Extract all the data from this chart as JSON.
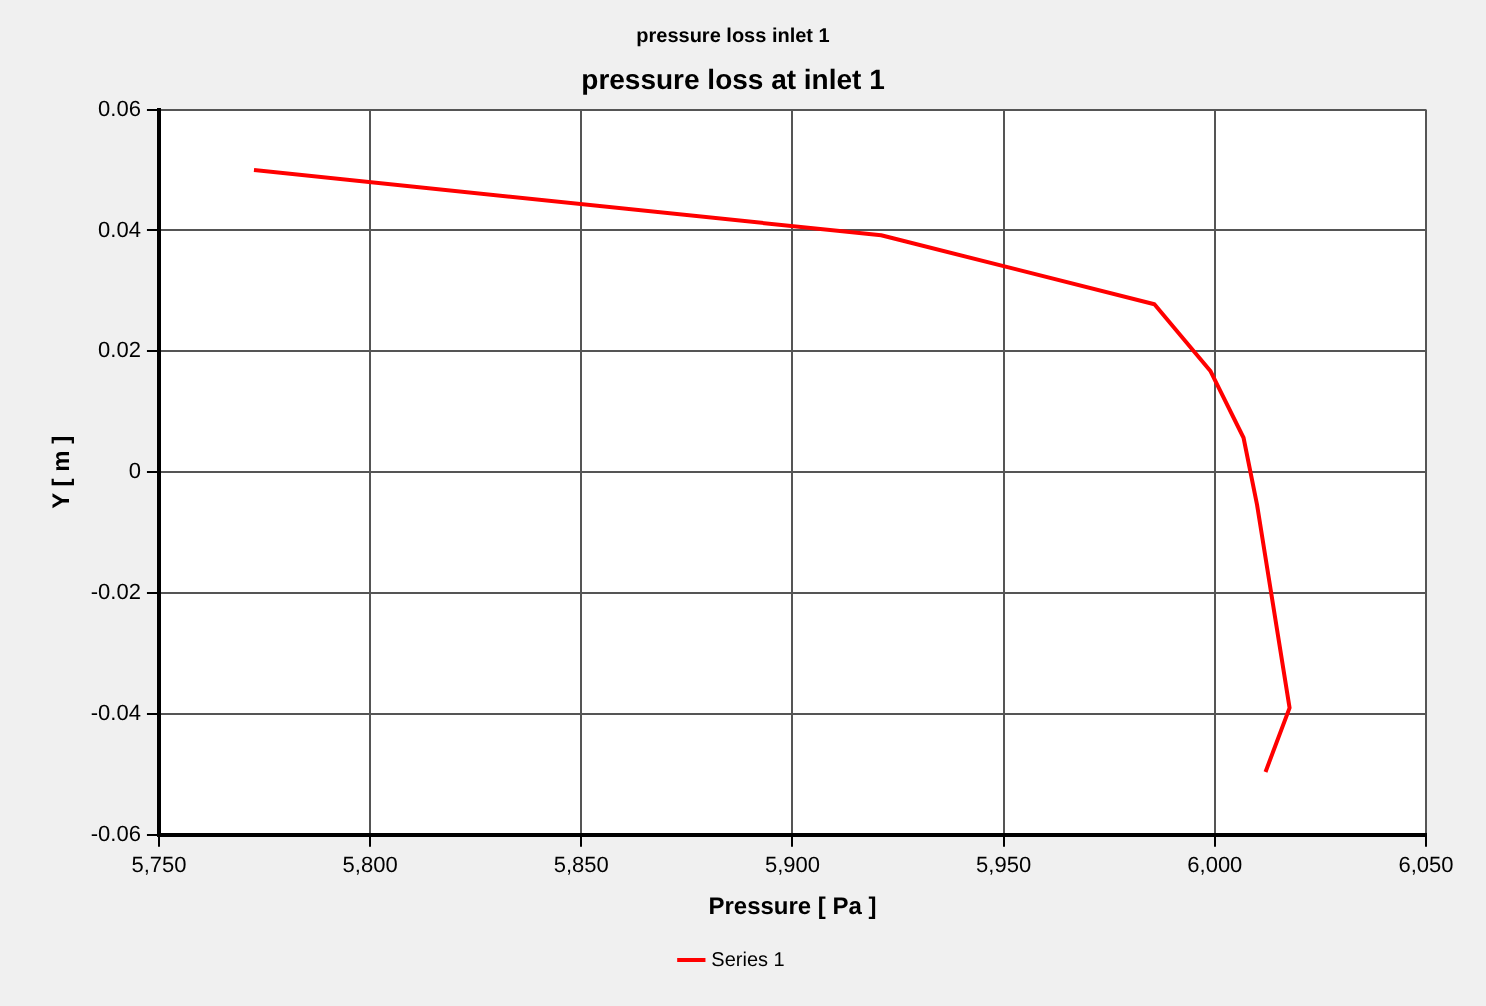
{
  "chart_data": {
    "type": "line",
    "title": "pressure loss inlet 1",
    "subtitle": "pressure loss at inlet 1",
    "xlabel": "Pressure [ Pa ]",
    "ylabel": "Y [ m ]",
    "series": [
      {
        "name": "Series 1",
        "color": "#ff0000",
        "x": [
          5772.5,
          5921,
          5985.7,
          5999,
          6006.8,
          6010,
          6017.7,
          6012
        ],
        "values": [
          0.05,
          0.0392,
          0.0278,
          0.0167,
          0.0057,
          -0.0054,
          -0.039,
          -0.0496
        ]
      }
    ],
    "xlim": [
      5750,
      6050
    ],
    "xticks": [
      {
        "value": 5750,
        "label": "5,750"
      },
      {
        "value": 5800,
        "label": "5,800"
      },
      {
        "value": 5850,
        "label": "5,850"
      },
      {
        "value": 5900,
        "label": "5,900"
      },
      {
        "value": 5950,
        "label": "5,950"
      },
      {
        "value": 6000,
        "label": "6,000"
      },
      {
        "value": 6050,
        "label": "6,050"
      }
    ],
    "ylim": [
      -0.06,
      0.06
    ],
    "yticks": [
      -0.06,
      -0.04,
      -0.02,
      0,
      0.02,
      0.04,
      0.06
    ],
    "grid": true,
    "legend": "bottom",
    "marker": "none",
    "line_style": "solid"
  }
}
